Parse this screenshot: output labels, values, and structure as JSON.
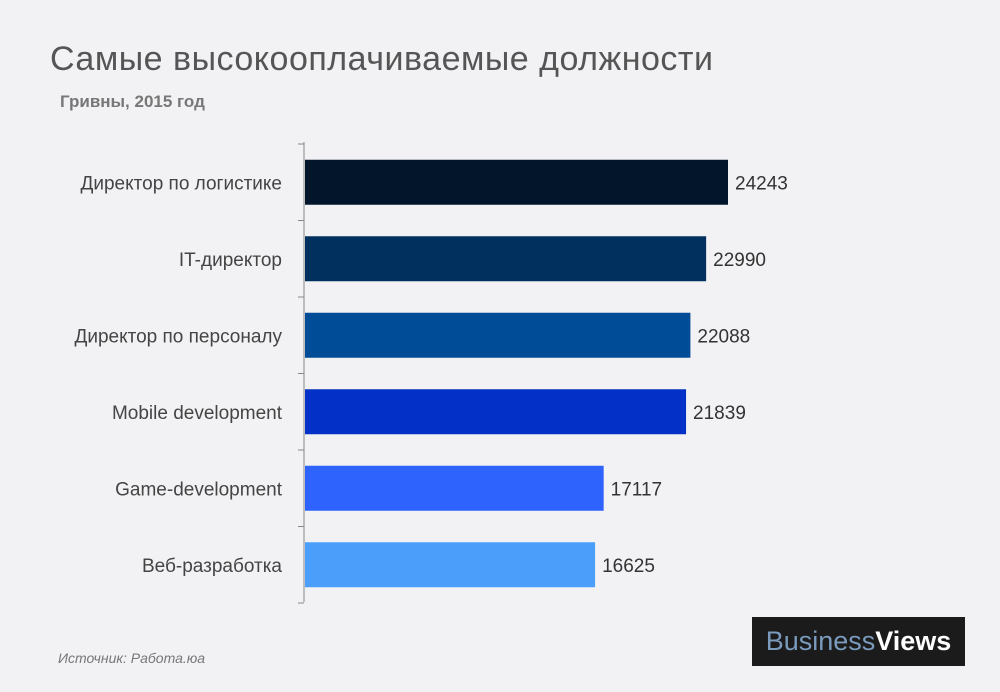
{
  "chart_data": {
    "type": "bar",
    "orientation": "horizontal",
    "title": "Самые высокооплачиваемые должности",
    "subtitle": "Гривны, 2015 год",
    "categories": [
      "Директор по логистике",
      "IT-директор",
      "Директор по персоналу",
      "Mobile development",
      "Game-development",
      "Веб-разработка"
    ],
    "values": [
      24243,
      22990,
      22088,
      21839,
      17117,
      16625
    ],
    "colors": [
      "#03152b",
      "#02305e",
      "#014c97",
      "#0331c7",
      "#2e63fd",
      "#4b9ffb"
    ],
    "xlim": [
      0,
      24243
    ],
    "xlabel": "",
    "ylabel": ""
  },
  "source": "Источник: Работа.юа",
  "brand": {
    "part1": "Business",
    "part2": "Views"
  }
}
